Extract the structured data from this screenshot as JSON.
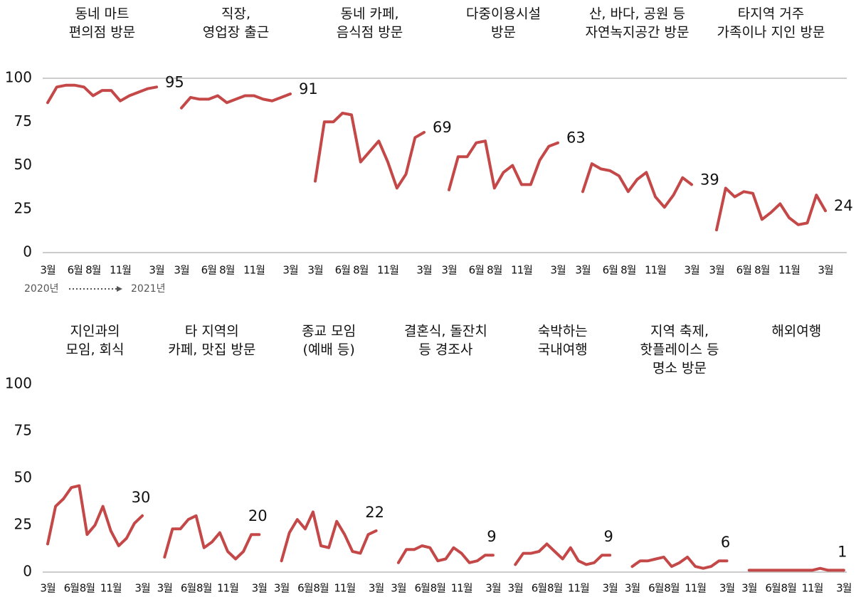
{
  "chart_data": [
    {
      "type": "line",
      "color": "#c44848",
      "ylim": [
        0,
        100
      ],
      "yticks": [
        0,
        25,
        50,
        75,
        100
      ],
      "top_line": true,
      "categories": [
        "3월",
        null,
        null,
        "6월",
        null,
        "8월",
        null,
        null,
        "11월",
        null,
        null,
        null,
        "3월"
      ],
      "annotations": [
        "2020년",
        "2021년"
      ],
      "panels": [
        {
          "title": [
            "동네 마트",
            "편의점 방문"
          ],
          "values": [
            86,
            95,
            96,
            96,
            95,
            90,
            93,
            93,
            87,
            90,
            92,
            94,
            95
          ]
        },
        {
          "title": [
            "직장,",
            "영업장 출근"
          ],
          "values": [
            83,
            89,
            88,
            88,
            90,
            86,
            88,
            90,
            90,
            88,
            87,
            89,
            91
          ]
        },
        {
          "title": [
            "동네 카페,",
            "음식점 방문"
          ],
          "values": [
            41,
            75,
            75,
            80,
            79,
            52,
            58,
            64,
            52,
            37,
            45,
            66,
            69
          ]
        },
        {
          "title": [
            "다중이용시설",
            "방문"
          ],
          "values": [
            36,
            55,
            55,
            63,
            64,
            37,
            46,
            50,
            39,
            39,
            53,
            61,
            63
          ]
        },
        {
          "title": [
            "산, 바다, 공원 등",
            "자연녹지공간 방문"
          ],
          "values": [
            35,
            51,
            48,
            47,
            44,
            35,
            42,
            46,
            32,
            26,
            33,
            43,
            39
          ]
        },
        {
          "title": [
            "타지역 거주",
            "가족이나 지인 방문"
          ],
          "values": [
            13,
            37,
            32,
            35,
            34,
            19,
            23,
            28,
            20,
            16,
            17,
            33,
            24
          ]
        }
      ]
    },
    {
      "type": "line",
      "color": "#c44848",
      "ylim": [
        0,
        100
      ],
      "yticks": [
        0,
        25,
        50,
        75,
        100
      ],
      "top_line": false,
      "categories": [
        "3월",
        null,
        null,
        "6월",
        null,
        "8월",
        null,
        null,
        "11월",
        null,
        null,
        null,
        "3월"
      ],
      "panels": [
        {
          "title": [
            "지인과의",
            "모임, 회식"
          ],
          "values": [
            15,
            35,
            39,
            45,
            46,
            20,
            25,
            35,
            22,
            14,
            18,
            26,
            30
          ]
        },
        {
          "title": [
            "타 지역의",
            "카페, 맛집 방문"
          ],
          "values": [
            8,
            23,
            23,
            28,
            30,
            13,
            16,
            21,
            11,
            7,
            11,
            20,
            20
          ]
        },
        {
          "title": [
            "종교 모임",
            "(예배 등)"
          ],
          "values": [
            6,
            21,
            28,
            23,
            32,
            14,
            13,
            27,
            20,
            11,
            10,
            20,
            22
          ]
        },
        {
          "title": [
            "결혼식, 돌잔치",
            "등 경조사"
          ],
          "values": [
            5,
            12,
            12,
            14,
            13,
            6,
            7,
            13,
            10,
            5,
            6,
            9,
            9
          ]
        },
        {
          "title": [
            "숙박하는",
            "국내여행"
          ],
          "values": [
            4,
            10,
            10,
            11,
            15,
            11,
            7,
            13,
            6,
            4,
            5,
            9,
            9
          ]
        },
        {
          "title": [
            "지역 축제,",
            "핫플레이스 등",
            "명소 방문"
          ],
          "values": [
            3,
            6,
            6,
            7,
            8,
            3,
            5,
            8,
            3,
            2,
            3,
            6,
            6
          ]
        },
        {
          "title": [
            "해외여행"
          ],
          "values": [
            1,
            1,
            1,
            1,
            1,
            1,
            1,
            1,
            1,
            2,
            1,
            1,
            1
          ]
        }
      ]
    }
  ]
}
